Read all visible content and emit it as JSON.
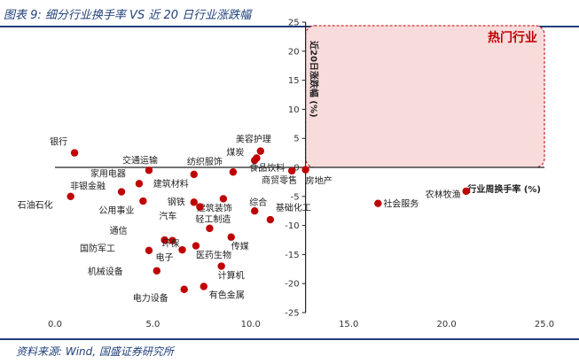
{
  "header": {
    "title": "图表 9:  细分行业换手率 VS 近 20 日行业涨跌幅"
  },
  "footer": {
    "source": "资料来源: Wind, 国盛证券研究所"
  },
  "chart_data": {
    "type": "scatter",
    "title": "图表 9:  细分行业换手率 VS 近 20 日行业涨跌幅",
    "xlabel": "行业周换手率 (%)",
    "ylabel": "近20日涨跌幅 (%)",
    "xlim": [
      0,
      25
    ],
    "ylim": [
      -25,
      25
    ],
    "xticks": [
      "0.0",
      "5.0",
      "10.0",
      "15.0",
      "20.0",
      "25.0"
    ],
    "yticks": [
      "25",
      "20",
      "15",
      "10",
      "5",
      "0",
      "-5",
      "-10",
      "-15",
      "-20",
      "-25"
    ],
    "grid": false,
    "highlight": {
      "label": "热门行业",
      "x_range": [
        12.8,
        25
      ],
      "y_range": [
        0,
        25
      ],
      "color": "#c00000"
    },
    "marker_color": "#c00000",
    "points": [
      {
        "name": "银行",
        "x": 1.0,
        "y": 2.5
      },
      {
        "name": "交通运输",
        "x": 4.8,
        "y": -0.5
      },
      {
        "name": "家用电器",
        "x": 4.3,
        "y": -2.8
      },
      {
        "name": "非银金融",
        "x": 3.4,
        "y": -4.2
      },
      {
        "name": "石油石化",
        "x": 0.8,
        "y": -5.0
      },
      {
        "name": "公用事业",
        "x": 4.5,
        "y": -5.8
      },
      {
        "name": "美容护理",
        "x": 10.5,
        "y": 2.8
      },
      {
        "name": "煤炭",
        "x": 10.3,
        "y": 1.6
      },
      {
        "name": "食品饮料",
        "x": 10.2,
        "y": 1.2
      },
      {
        "name": "纺织服饰",
        "x": 9.1,
        "y": -0.8
      },
      {
        "name": "商贸零售",
        "x": 12.1,
        "y": -0.6
      },
      {
        "name": "房地产",
        "x": 12.8,
        "y": -0.4
      },
      {
        "name": "建筑材料",
        "x": 7.1,
        "y": -1.2
      },
      {
        "name": "钢铁",
        "x": 7.1,
        "y": -6.0
      },
      {
        "name": "建筑装饰",
        "x": 8.6,
        "y": -5.4
      },
      {
        "name": "综合",
        "x": 10.2,
        "y": -7.5
      },
      {
        "name": "基础化工",
        "x": 11.0,
        "y": -9.0
      },
      {
        "name": "汽车",
        "x": 7.4,
        "y": -6.8
      },
      {
        "name": "轻工制造",
        "x": 7.9,
        "y": -10.5
      },
      {
        "name": "传媒",
        "x": 9.0,
        "y": -12.0
      },
      {
        "name": "通信",
        "x": 5.6,
        "y": -12.5
      },
      {
        "name": "环保",
        "x": 6.0,
        "y": -12.6
      },
      {
        "name": "国防军工",
        "x": 4.8,
        "y": -14.3
      },
      {
        "name": "医药生物",
        "x": 7.2,
        "y": -13.5
      },
      {
        "name": "机械设备",
        "x": 5.2,
        "y": -17.8
      },
      {
        "name": "电子",
        "x": 6.5,
        "y": -14.2
      },
      {
        "name": "计算机",
        "x": 8.5,
        "y": -17.0
      },
      {
        "name": "电力设备",
        "x": 6.6,
        "y": -21.0
      },
      {
        "name": "有色金属",
        "x": 7.6,
        "y": -20.5
      },
      {
        "name": "社会服务",
        "x": 16.5,
        "y": -6.2
      },
      {
        "name": "农林牧渔",
        "x": 21.0,
        "y": -4.1
      }
    ]
  }
}
